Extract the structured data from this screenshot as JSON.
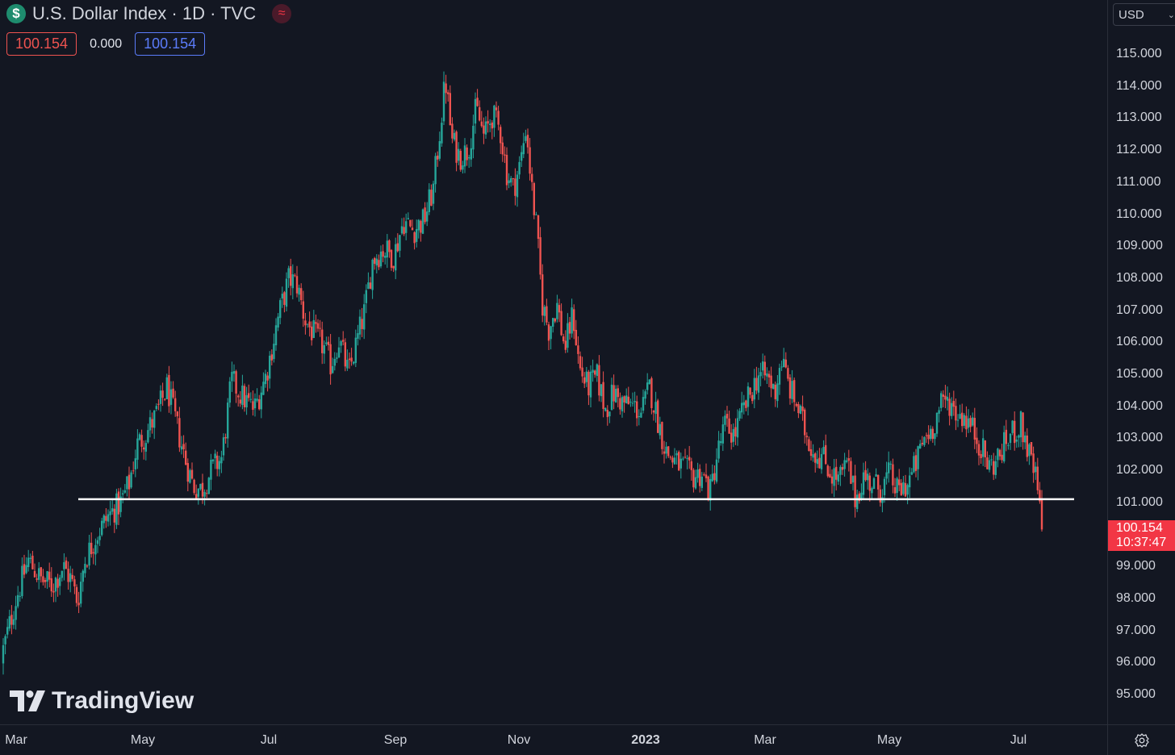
{
  "legend": {
    "title": "U.S. Dollar Index · 1D · TVC",
    "symbol_icon": "dollar-icon",
    "indicator_icon": "wave-icon",
    "open_value": "100.154",
    "change_value": "0.000",
    "close_value": "100.154"
  },
  "currency": {
    "label": "USD"
  },
  "price_tag": {
    "price": "100.154",
    "countdown": "10:37:47"
  },
  "brand": {
    "name": "TradingView"
  },
  "colors": {
    "up": "#26a69a",
    "down": "#ef5350",
    "background": "#131722",
    "support_line": "#ffffff"
  },
  "chart_data": {
    "type": "candlestick",
    "x_axis_labels": [
      "Mar",
      "May",
      "Jul",
      "Sep",
      "Nov",
      "2023",
      "Mar",
      "May",
      "Jul"
    ],
    "y_tick_labels": [
      "115.000",
      "114.000",
      "113.000",
      "112.000",
      "111.000",
      "110.000",
      "109.000",
      "108.000",
      "107.000",
      "106.000",
      "105.000",
      "104.000",
      "103.000",
      "102.000",
      "101.000",
      "99.000",
      "98.000",
      "97.000",
      "96.000",
      "95.000"
    ],
    "ylim": [
      94.1,
      116.6
    ],
    "grid": false,
    "support_level": 101.1,
    "last_price": 100.154,
    "path": [
      [
        0,
        96.0
      ],
      [
        10,
        97.0
      ],
      [
        20,
        98.0
      ],
      [
        35,
        99.2
      ],
      [
        50,
        98.6
      ],
      [
        65,
        98.4
      ],
      [
        78,
        99.0
      ],
      [
        88,
        98.6
      ],
      [
        96,
        97.9
      ],
      [
        105,
        99.2
      ],
      [
        120,
        100.0
      ],
      [
        135,
        100.6
      ],
      [
        150,
        101.0
      ],
      [
        160,
        101.6
      ],
      [
        170,
        102.8
      ],
      [
        180,
        103.1
      ],
      [
        195,
        103.8
      ],
      [
        207,
        104.6
      ],
      [
        218,
        103.5
      ],
      [
        230,
        102.3
      ],
      [
        240,
        101.5
      ],
      [
        250,
        101.4
      ],
      [
        262,
        102.0
      ],
      [
        275,
        102.4
      ],
      [
        287,
        104.8
      ],
      [
        300,
        104.3
      ],
      [
        315,
        103.9
      ],
      [
        330,
        105.0
      ],
      [
        345,
        106.8
      ],
      [
        358,
        108.0
      ],
      [
        368,
        107.8
      ],
      [
        378,
        106.7
      ],
      [
        390,
        106.2
      ],
      [
        400,
        105.9
      ],
      [
        410,
        105.3
      ],
      [
        420,
        106.1
      ],
      [
        432,
        105.0
      ],
      [
        442,
        106.0
      ],
      [
        452,
        107.0
      ],
      [
        462,
        108.6
      ],
      [
        475,
        108.9
      ],
      [
        488,
        108.7
      ],
      [
        500,
        109.8
      ],
      [
        512,
        109.5
      ],
      [
        525,
        109.8
      ],
      [
        537,
        110.8
      ],
      [
        545,
        112.6
      ],
      [
        552,
        114.2
      ],
      [
        560,
        112.3
      ],
      [
        570,
        111.8
      ],
      [
        580,
        112.0
      ],
      [
        590,
        113.3
      ],
      [
        600,
        112.4
      ],
      [
        610,
        113.1
      ],
      [
        620,
        112.6
      ],
      [
        628,
        111.3
      ],
      [
        636,
        110.8
      ],
      [
        645,
        111.6
      ],
      [
        652,
        112.8
      ],
      [
        658,
        111.0
      ],
      [
        665,
        109.5
      ],
      [
        672,
        107.2
      ],
      [
        680,
        106.4
      ],
      [
        690,
        107.2
      ],
      [
        700,
        105.8
      ],
      [
        710,
        106.9
      ],
      [
        718,
        105.2
      ],
      [
        728,
        104.6
      ],
      [
        740,
        104.9
      ],
      [
        750,
        103.9
      ],
      [
        760,
        104.4
      ],
      [
        772,
        104.1
      ],
      [
        785,
        104.0
      ],
      [
        795,
        103.8
      ],
      [
        805,
        104.6
      ],
      [
        815,
        103.6
      ],
      [
        825,
        102.6
      ],
      [
        835,
        102.3
      ],
      [
        845,
        102.1
      ],
      [
        858,
        101.8
      ],
      [
        870,
        101.9
      ],
      [
        880,
        101.3
      ],
      [
        888,
        102.4
      ],
      [
        898,
        103.4
      ],
      [
        910,
        103.1
      ],
      [
        920,
        103.8
      ],
      [
        930,
        104.4
      ],
      [
        940,
        105.0
      ],
      [
        952,
        104.9
      ],
      [
        960,
        104.4
      ],
      [
        968,
        105.5
      ],
      [
        978,
        104.6
      ],
      [
        988,
        104.0
      ],
      [
        998,
        103.2
      ],
      [
        1008,
        102.6
      ],
      [
        1020,
        102.4
      ],
      [
        1030,
        101.9
      ],
      [
        1040,
        101.7
      ],
      [
        1050,
        102.2
      ],
      [
        1060,
        101.1
      ],
      [
        1070,
        101.8
      ],
      [
        1080,
        101.6
      ],
      [
        1092,
        101.4
      ],
      [
        1102,
        101.9
      ],
      [
        1112,
        101.3
      ],
      [
        1125,
        101.6
      ],
      [
        1135,
        102.2
      ],
      [
        1145,
        103.0
      ],
      [
        1155,
        103.3
      ],
      [
        1165,
        104.0
      ],
      [
        1175,
        104.2
      ],
      [
        1185,
        103.8
      ],
      [
        1195,
        103.7
      ],
      [
        1205,
        103.3
      ],
      [
        1215,
        102.8
      ],
      [
        1225,
        102.1
      ],
      [
        1235,
        102.3
      ],
      [
        1245,
        102.8
      ],
      [
        1255,
        103.2
      ],
      [
        1265,
        103.4
      ],
      [
        1272,
        102.8
      ],
      [
        1278,
        102.2
      ],
      [
        1284,
        101.7
      ],
      [
        1288,
        100.9
      ],
      [
        1292,
        100.154
      ]
    ]
  }
}
